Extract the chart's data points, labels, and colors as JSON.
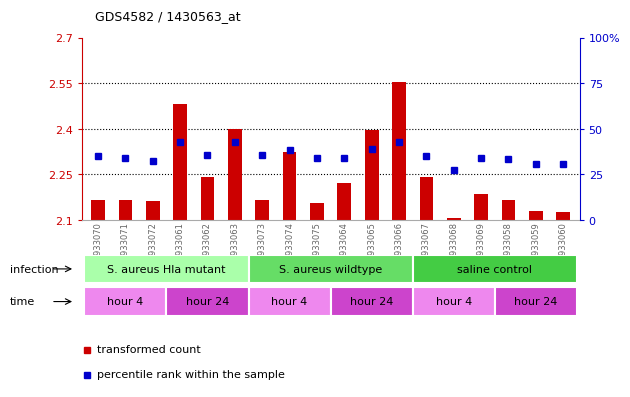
{
  "title": "GDS4582 / 1430563_at",
  "samples": [
    "GSM933070",
    "GSM933071",
    "GSM933072",
    "GSM933061",
    "GSM933062",
    "GSM933063",
    "GSM933073",
    "GSM933074",
    "GSM933075",
    "GSM933064",
    "GSM933065",
    "GSM933066",
    "GSM933067",
    "GSM933068",
    "GSM933069",
    "GSM933058",
    "GSM933059",
    "GSM933060"
  ],
  "bar_values": [
    2.165,
    2.165,
    2.163,
    2.48,
    2.24,
    2.4,
    2.165,
    2.325,
    2.155,
    2.22,
    2.395,
    2.555,
    2.24,
    2.105,
    2.185,
    2.165,
    2.13,
    2.125
  ],
  "dot_values": [
    2.31,
    2.305,
    2.295,
    2.355,
    2.315,
    2.355,
    2.315,
    2.33,
    2.305,
    2.305,
    2.335,
    2.355,
    2.31,
    2.265,
    2.305,
    2.3,
    2.285,
    2.285
  ],
  "ymin": 2.1,
  "ymax": 2.7,
  "yticks": [
    2.1,
    2.25,
    2.4,
    2.55,
    2.7
  ],
  "ytick_labels": [
    "2.1",
    "2.25",
    "2.4",
    "2.55",
    "2.7"
  ],
  "right_yticks": [
    0,
    25,
    50,
    75,
    100
  ],
  "right_ytick_labels": [
    "0",
    "25",
    "50",
    "75",
    "100%"
  ],
  "bar_color": "#cc0000",
  "dot_color": "#0000cc",
  "bg_color": "#ffffff",
  "plot_bg_color": "#ffffff",
  "infection_groups": [
    {
      "label": "S. aureus Hla mutant",
      "start": 0,
      "end": 5,
      "color": "#aaffaa"
    },
    {
      "label": "S. aureus wildtype",
      "start": 6,
      "end": 11,
      "color": "#66dd66"
    },
    {
      "label": "saline control",
      "start": 12,
      "end": 17,
      "color": "#44cc44"
    }
  ],
  "time_groups": [
    {
      "label": "hour 4",
      "start": 0,
      "end": 2,
      "color": "#ee88ee"
    },
    {
      "label": "hour 24",
      "start": 3,
      "end": 5,
      "color": "#cc44cc"
    },
    {
      "label": "hour 4",
      "start": 6,
      "end": 8,
      "color": "#ee88ee"
    },
    {
      "label": "hour 24",
      "start": 9,
      "end": 11,
      "color": "#cc44cc"
    },
    {
      "label": "hour 4",
      "start": 12,
      "end": 14,
      "color": "#ee88ee"
    },
    {
      "label": "hour 24",
      "start": 15,
      "end": 17,
      "color": "#cc44cc"
    }
  ],
  "infection_label": "infection",
  "time_label": "time",
  "legend_bar_label": "transformed count",
  "legend_dot_label": "percentile rank within the sample",
  "tick_label_color": "#888888",
  "left_axis_color": "#cc0000",
  "right_axis_color": "#0000cc"
}
